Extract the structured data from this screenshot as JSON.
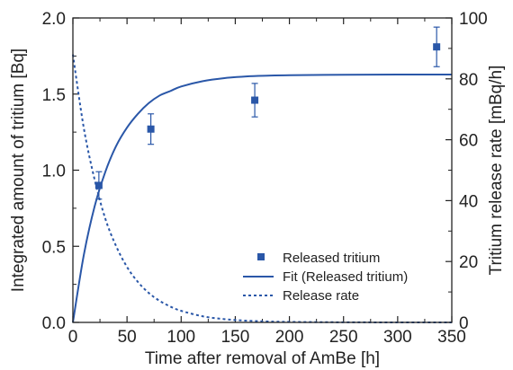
{
  "chart_data": {
    "type": "scatter",
    "xlabel": "Time after removal of AmBe [h]",
    "ylabel": "Integrated amount of tritium [Bq]",
    "y2label": "Tritium release rate [mBq/h]",
    "xlim": [
      0,
      350
    ],
    "ylim": [
      0,
      2.0
    ],
    "y2lim": [
      0,
      100
    ],
    "x_ticks": [
      "0",
      "50",
      "100",
      "150",
      "200",
      "250",
      "300",
      "350"
    ],
    "y_ticks": [
      "0.0",
      "0.5",
      "1.0",
      "1.5",
      "2.0"
    ],
    "y2_ticks": [
      "0",
      "20",
      "40",
      "60",
      "80",
      "100"
    ],
    "grid": false,
    "legend_position": "bottom-right",
    "series": [
      {
        "name": "Released tritium",
        "kind": "points",
        "axis": "left",
        "x": [
          24,
          72,
          168,
          336
        ],
        "y": [
          0.9,
          1.27,
          1.46,
          1.81
        ],
        "err_plus": [
          0.09,
          0.1,
          0.11,
          0.13
        ],
        "err_minus": [
          0.09,
          0.1,
          0.11,
          0.13
        ]
      },
      {
        "name": "Fit (Released tritium)",
        "kind": "line",
        "axis": "left",
        "x": [
          0,
          10,
          20,
          30,
          40,
          50,
          60,
          70,
          80,
          90,
          100,
          120,
          140,
          160,
          180,
          200,
          250,
          300,
          350
        ],
        "y": [
          0.0,
          0.44,
          0.76,
          0.99,
          1.16,
          1.28,
          1.37,
          1.44,
          1.49,
          1.52,
          1.55,
          1.585,
          1.605,
          1.616,
          1.621,
          1.624,
          1.627,
          1.628,
          1.628
        ]
      },
      {
        "name": "Release rate",
        "kind": "dashed-line",
        "axis": "right",
        "x": [
          0,
          10,
          20,
          30,
          40,
          50,
          60,
          70,
          80,
          90,
          100,
          120,
          140,
          160,
          180,
          200,
          250,
          300,
          350
        ],
        "y": [
          88,
          64,
          47,
          34,
          25,
          18.2,
          13.3,
          9.7,
          7.1,
          5.2,
          3.8,
          2.0,
          1.07,
          0.57,
          0.3,
          0.16,
          0.04,
          0.01,
          0.0
        ]
      }
    ],
    "colors": {
      "series": "#2a57a8",
      "axis": "#222222"
    }
  }
}
